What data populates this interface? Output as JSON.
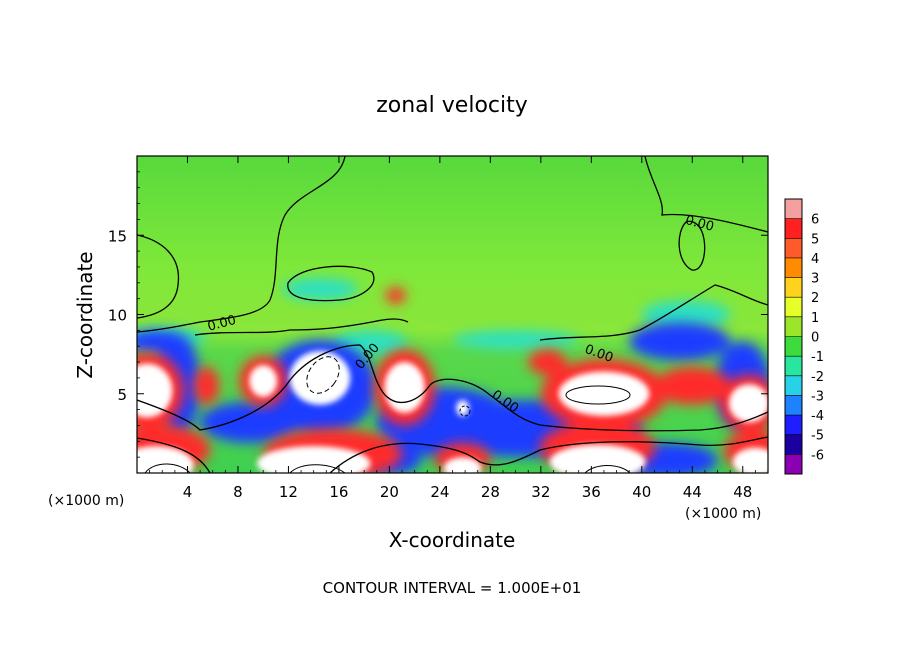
{
  "chart_data": {
    "type": "heatmap",
    "title": "zonal velocity",
    "xlabel": "X-coordinate",
    "ylabel": "Z-coordinate",
    "x_unit_left": "(×1000 m)",
    "x_unit_right": "(×1000 m)",
    "xlim": [
      0,
      50
    ],
    "ylim": [
      0,
      20
    ],
    "xticks": [
      4,
      8,
      12,
      16,
      20,
      24,
      28,
      32,
      36,
      40,
      44,
      48
    ],
    "yticks": [
      5,
      10,
      15
    ],
    "footer": "CONTOUR INTERVAL = 1.000E+01",
    "colorbar": {
      "levels": [
        6,
        5,
        4,
        3,
        2,
        1,
        0,
        -1,
        -2,
        -3,
        -4,
        -5,
        -6
      ],
      "colors": [
        "#f4a0a0",
        "#ff2020",
        "#ff5a2a",
        "#ff8c00",
        "#ffd21e",
        "#e6ff28",
        "#9be628",
        "#3cdc3c",
        "#28e6a0",
        "#28d2e6",
        "#1e82ff",
        "#1e1eff",
        "#1a00a0",
        "#8c00b4"
      ]
    },
    "contour_labels": [
      {
        "text": "0.00",
        "x": 44.5,
        "z": 15.5,
        "rotate": 15
      },
      {
        "text": "0.00",
        "x": 6.8,
        "z": 9.2,
        "rotate": -15
      },
      {
        "text": "0.00",
        "x": 18.5,
        "z": 7.2,
        "rotate": -50
      },
      {
        "text": "0.00",
        "x": 29.0,
        "z": 4.3,
        "rotate": 35
      },
      {
        "text": "0.00",
        "x": 36.5,
        "z": 7.3,
        "rotate": 20
      }
    ],
    "features": {
      "white_strong": [
        {
          "x": 0.8,
          "z": 5.2,
          "rx": 2.0,
          "rz": 1.7
        },
        {
          "x": 14.5,
          "z": 6.0,
          "rx": 2.4,
          "rz": 1.7
        },
        {
          "x": 21.2,
          "z": 5.4,
          "rx": 1.6,
          "rz": 1.6
        },
        {
          "x": 37.0,
          "z": 5.0,
          "rx": 3.6,
          "rz": 1.4
        },
        {
          "x": 10.0,
          "z": 5.8,
          "rx": 1.1,
          "rz": 1.0
        },
        {
          "x": 48.5,
          "z": 4.4,
          "rx": 1.6,
          "rz": 1.2
        },
        {
          "x": 25.8,
          "z": 4.1,
          "rx": 0.5,
          "rz": 0.5
        }
      ],
      "white_floor": [
        {
          "x": 1.5,
          "z": 0.5,
          "rx": 3.0,
          "rz": 1.2
        },
        {
          "x": 14.0,
          "z": 0.6,
          "rx": 4.5,
          "rz": 1.1
        },
        {
          "x": 25.8,
          "z": 0.3,
          "rx": 1.5,
          "rz": 0.7
        },
        {
          "x": 36.5,
          "z": 0.7,
          "rx": 3.8,
          "rz": 1.1
        },
        {
          "x": 49.0,
          "z": 0.7,
          "rx": 1.8,
          "rz": 0.9
        }
      ],
      "red_blobs": [
        {
          "x": 0.8,
          "z": 5.2,
          "rx": 2.9,
          "rz": 2.4
        },
        {
          "x": 10.0,
          "z": 5.8,
          "rx": 1.9,
          "rz": 1.6
        },
        {
          "x": 21.2,
          "z": 5.4,
          "rx": 2.4,
          "rz": 2.4
        },
        {
          "x": 37.0,
          "z": 5.0,
          "rx": 5.0,
          "rz": 2.2
        },
        {
          "x": 44.0,
          "z": 5.5,
          "rx": 3.0,
          "rz": 1.2
        },
        {
          "x": 32.5,
          "z": 7.0,
          "rx": 1.5,
          "rz": 0.8
        },
        {
          "x": 20.5,
          "z": 11.2,
          "rx": 0.8,
          "rz": 0.5
        },
        {
          "x": 48.5,
          "z": 4.4,
          "rx": 2.3,
          "rz": 1.8
        },
        {
          "x": 5.5,
          "z": 5.5,
          "rx": 1.0,
          "rz": 1.2
        },
        {
          "x": 15.5,
          "z": 1.2,
          "rx": 5.5,
          "rz": 1.6
        },
        {
          "x": 2.0,
          "z": 1.5,
          "rx": 3.8,
          "rz": 1.5
        },
        {
          "x": 36.5,
          "z": 1.6,
          "rx": 4.6,
          "rz": 1.6
        },
        {
          "x": 49.0,
          "z": 1.4,
          "rx": 2.5,
          "rz": 1.3
        },
        {
          "x": 25.8,
          "z": 0.9,
          "rx": 2.2,
          "rz": 1.0
        }
      ],
      "blue_bands": [
        {
          "x": 14.5,
          "z": 5.4,
          "rx": 4.5,
          "rz": 3.0
        },
        {
          "x": 24.5,
          "z": 3.2,
          "rx": 5.5,
          "rz": 2.2
        },
        {
          "x": 31.0,
          "z": 2.8,
          "rx": 9.0,
          "rz": 1.8
        },
        {
          "x": 3.2,
          "z": 5.6,
          "rx": 1.8,
          "rz": 3.2
        },
        {
          "x": 1.5,
          "z": 8.3,
          "rx": 2.5,
          "rz": 0.7
        },
        {
          "x": 43.0,
          "z": 8.3,
          "rx": 4.0,
          "rz": 1.2
        },
        {
          "x": 48.0,
          "z": 5.5,
          "rx": 2.2,
          "rz": 2.8
        },
        {
          "x": 42.0,
          "z": 0.8,
          "rx": 4.0,
          "rz": 1.1
        },
        {
          "x": 20.0,
          "z": 0.8,
          "rx": 2.5,
          "rz": 0.9
        },
        {
          "x": 9.0,
          "z": 3.2,
          "rx": 4.0,
          "rz": 1.3
        }
      ],
      "cyan_patches": [
        {
          "x": 14.5,
          "z": 11.6,
          "rx": 3.0,
          "rz": 0.7
        },
        {
          "x": 43.5,
          "z": 10.0,
          "rx": 3.5,
          "rz": 0.9
        },
        {
          "x": 2.5,
          "z": 8.5,
          "rx": 3.0,
          "rz": 0.6
        },
        {
          "x": 30.0,
          "z": 8.4,
          "rx": 5.0,
          "rz": 0.6
        },
        {
          "x": 18.5,
          "z": 8.2,
          "rx": 3.0,
          "rz": 0.8
        }
      ]
    }
  }
}
